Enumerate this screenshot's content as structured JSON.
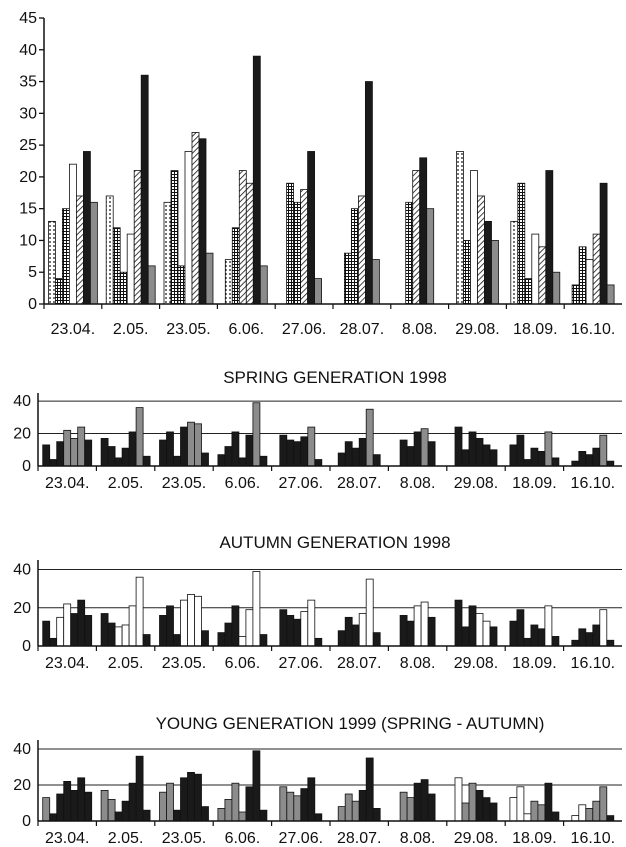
{
  "chart_data": [
    {
      "type": "bar",
      "title": "",
      "categories": [
        "23.04.",
        "2.05.",
        "23.05.",
        "6.06.",
        "27.06.",
        "28.07.",
        "8.08.",
        "29.08.",
        "18.09.",
        "16.10."
      ],
      "ylim": [
        0,
        45
      ],
      "yticks": [
        0,
        5,
        10,
        15,
        20,
        25,
        30,
        35,
        40,
        45
      ],
      "grid": false,
      "legend": "none",
      "values": [
        [
          13,
          4,
          15,
          22,
          17,
          24,
          16
        ],
        [
          17,
          12,
          5,
          11,
          21,
          36,
          6
        ],
        [
          16,
          21,
          6,
          24,
          27,
          26,
          8
        ],
        [
          7,
          12,
          21,
          19,
          39,
          6
        ],
        [
          19,
          16,
          18,
          24,
          4
        ],
        [
          8,
          15,
          17,
          35,
          7
        ],
        [
          16,
          21,
          23,
          15
        ],
        [
          24,
          10,
          21,
          17,
          13,
          10
        ],
        [
          13,
          19,
          4,
          11,
          9,
          21,
          5
        ],
        [
          3,
          9,
          7,
          11,
          19,
          3
        ]
      ],
      "patterns": [
        [
          "dots",
          "grid",
          "grid",
          "white",
          "hatch",
          "black",
          "gray"
        ],
        [
          "dots",
          "grid",
          "grid",
          "white",
          "hatch",
          "black",
          "gray"
        ],
        [
          "dots",
          "grid",
          "grid",
          "white",
          "hatch",
          "black",
          "gray"
        ],
        [
          "dots",
          "grid",
          "hatch",
          "hatch",
          "black",
          "gray"
        ],
        [
          "grid",
          "grid",
          "hatch",
          "black",
          "gray"
        ],
        [
          "grid",
          "grid",
          "hatch",
          "black",
          "gray"
        ],
        [
          "grid",
          "hatch",
          "black",
          "gray"
        ],
        [
          "dots",
          "grid",
          "white",
          "hatch",
          "black",
          "gray"
        ],
        [
          "dots",
          "grid",
          "grid",
          "white",
          "hatch",
          "black",
          "gray"
        ],
        [
          "grid",
          "grid",
          "white",
          "hatch",
          "black",
          "gray"
        ]
      ]
    },
    {
      "type": "bar",
      "title": "SPRING GENERATION 1998",
      "categories": [
        "23.04.",
        "2.05.",
        "23.05.",
        "6.06.",
        "27.06.",
        "28.07.",
        "8.08.",
        "29.08.",
        "18.09.",
        "16.10."
      ],
      "ylim": [
        0,
        45
      ],
      "yticks": [
        0,
        20,
        40
      ],
      "grid": true,
      "legend": "none",
      "values": [
        [
          13,
          4,
          15,
          22,
          17,
          24,
          16
        ],
        [
          17,
          12,
          5,
          11,
          21,
          36,
          6
        ],
        [
          16,
          21,
          6,
          24,
          27,
          26,
          8
        ],
        [
          7,
          12,
          21,
          5,
          19,
          39,
          6
        ],
        [
          19,
          16,
          15,
          18,
          24,
          4
        ],
        [
          8,
          15,
          11,
          17,
          35,
          7
        ],
        [
          16,
          12,
          21,
          23,
          15
        ],
        [
          24,
          10,
          21,
          17,
          13,
          10
        ],
        [
          13,
          19,
          4,
          11,
          9,
          21,
          5
        ],
        [
          3,
          9,
          7,
          11,
          19,
          3
        ]
      ],
      "colors": [
        [
          "black",
          "black",
          "black",
          "gray",
          "gray",
          "gray",
          "black"
        ],
        [
          "black",
          "black",
          "black",
          "black",
          "black",
          "gray",
          "black"
        ],
        [
          "black",
          "black",
          "black",
          "black",
          "gray",
          "gray",
          "black"
        ],
        [
          "black",
          "black",
          "black",
          "black",
          "black",
          "gray",
          "black"
        ],
        [
          "black",
          "black",
          "black",
          "black",
          "gray",
          "black"
        ],
        [
          "black",
          "black",
          "black",
          "black",
          "gray",
          "black"
        ],
        [
          "black",
          "black",
          "black",
          "gray",
          "black"
        ],
        [
          "black",
          "black",
          "black",
          "black",
          "black",
          "black"
        ],
        [
          "black",
          "black",
          "black",
          "black",
          "black",
          "gray",
          "black"
        ],
        [
          "black",
          "black",
          "black",
          "black",
          "gray",
          "black"
        ]
      ]
    },
    {
      "type": "bar",
      "title": "AUTUMN GENERATION 1998",
      "categories": [
        "23.04.",
        "2.05.",
        "23.05.",
        "6.06.",
        "27.06.",
        "28.07.",
        "8.08.",
        "29.08.",
        "18.09.",
        "16.10."
      ],
      "ylim": [
        0,
        45
      ],
      "yticks": [
        0,
        20,
        40
      ],
      "grid": true,
      "legend": "none",
      "values": [
        [
          13,
          4,
          15,
          22,
          17,
          24,
          16
        ],
        [
          17,
          12,
          10,
          11,
          21,
          36,
          6
        ],
        [
          16,
          21,
          6,
          24,
          27,
          26,
          8
        ],
        [
          7,
          12,
          21,
          5,
          19,
          39,
          6
        ],
        [
          19,
          16,
          14,
          18,
          24,
          4
        ],
        [
          8,
          15,
          11,
          17,
          35,
          7
        ],
        [
          16,
          13,
          21,
          23,
          15
        ],
        [
          24,
          10,
          21,
          17,
          13,
          10
        ],
        [
          13,
          19,
          4,
          11,
          9,
          21,
          5
        ],
        [
          3,
          9,
          7,
          11,
          19,
          3
        ]
      ],
      "colors": [
        [
          "black",
          "black",
          "white",
          "white",
          "black",
          "black",
          "black"
        ],
        [
          "black",
          "black",
          "white",
          "white",
          "white",
          "white",
          "black"
        ],
        [
          "black",
          "black",
          "black",
          "white",
          "white",
          "white",
          "black"
        ],
        [
          "black",
          "black",
          "black",
          "white",
          "white",
          "white",
          "black"
        ],
        [
          "black",
          "black",
          "black",
          "white",
          "white",
          "black"
        ],
        [
          "black",
          "black",
          "black",
          "white",
          "white",
          "black"
        ],
        [
          "black",
          "black",
          "white",
          "white",
          "black"
        ],
        [
          "black",
          "black",
          "black",
          "white",
          "white",
          "black"
        ],
        [
          "black",
          "black",
          "black",
          "black",
          "black",
          "white",
          "black"
        ],
        [
          "black",
          "black",
          "black",
          "black",
          "white",
          "black"
        ]
      ]
    },
    {
      "type": "bar",
      "title": "YOUNG GENERATION 1999 (SPRING - AUTUMN)",
      "categories": [
        "23.04.",
        "2.05.",
        "23.05.",
        "6.06.",
        "27.06.",
        "28.07.",
        "8.08.",
        "29.08.",
        "18.09.",
        "16.10."
      ],
      "ylim": [
        0,
        45
      ],
      "yticks": [
        0,
        20,
        40
      ],
      "grid": true,
      "legend": "none",
      "values": [
        [
          13,
          4,
          15,
          22,
          17,
          24,
          16
        ],
        [
          17,
          12,
          5,
          11,
          21,
          36,
          6
        ],
        [
          16,
          21,
          6,
          24,
          27,
          26,
          8
        ],
        [
          7,
          12,
          21,
          5,
          19,
          39,
          6
        ],
        [
          19,
          16,
          14,
          18,
          24,
          4
        ],
        [
          8,
          15,
          11,
          17,
          35,
          7
        ],
        [
          16,
          13,
          21,
          23,
          15
        ],
        [
          24,
          10,
          21,
          17,
          13,
          10
        ],
        [
          13,
          19,
          4,
          11,
          9,
          21,
          5
        ],
        [
          3,
          9,
          7,
          11,
          19,
          3
        ]
      ],
      "colors": [
        [
          "gray",
          "black",
          "black",
          "black",
          "black",
          "black",
          "black"
        ],
        [
          "gray",
          "gray",
          "black",
          "black",
          "black",
          "black",
          "black"
        ],
        [
          "gray",
          "gray",
          "black",
          "black",
          "black",
          "black",
          "black"
        ],
        [
          "gray",
          "gray",
          "gray",
          "gray",
          "black",
          "black",
          "black"
        ],
        [
          "gray",
          "gray",
          "gray",
          "black",
          "black",
          "black"
        ],
        [
          "gray",
          "gray",
          "gray",
          "black",
          "black",
          "black"
        ],
        [
          "gray",
          "gray",
          "black",
          "black",
          "black"
        ],
        [
          "white",
          "gray",
          "gray",
          "black",
          "black",
          "black"
        ],
        [
          "white",
          "white",
          "white",
          "gray",
          "gray",
          "black",
          "black"
        ],
        [
          "white",
          "white",
          "gray",
          "gray",
          "gray",
          "black"
        ]
      ]
    }
  ],
  "colors": {
    "black": "#1a1a1a",
    "gray": "#8c8c8c",
    "white": "#ffffff",
    "axis": "#111111"
  }
}
